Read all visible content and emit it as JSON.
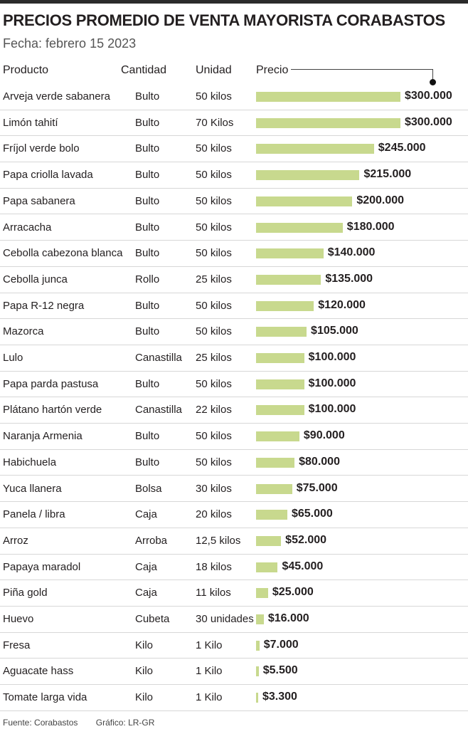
{
  "title": "PRECIOS PROMEDIO DE VENTA MAYORISTA  CORABASTOS",
  "subtitle": "Fecha: febrero 15 2023",
  "headers": {
    "producto": "Producto",
    "cantidad": "Cantidad",
    "unidad": "Unidad",
    "precio": "Precio"
  },
  "footer": {
    "source": "Fuente: Corabastos",
    "credit": "Gráfico: LR-GR"
  },
  "colors": {
    "bar": "#c8d98e",
    "text": "#231f20"
  },
  "chart_data": {
    "type": "bar",
    "orientation": "horizontal",
    "xlim": [
      0,
      300000
    ],
    "rows": [
      {
        "producto": "Arveja verde sabanera",
        "cantidad": "Bulto",
        "unidad": "50 kilos",
        "value": 300000,
        "label": "$300.000"
      },
      {
        "producto": "Limón tahití",
        "cantidad": "Bulto",
        "unidad": "70 Kilos",
        "value": 300000,
        "label": "$300.000"
      },
      {
        "producto": "Fríjol verde bolo",
        "cantidad": "Bulto",
        "unidad": "50 kilos",
        "value": 245000,
        "label": "$245.000"
      },
      {
        "producto": "Papa criolla lavada",
        "cantidad": "Bulto",
        "unidad": "50 kilos",
        "value": 215000,
        "label": "$215.000"
      },
      {
        "producto": "Papa sabanera",
        "cantidad": "Bulto",
        "unidad": "50 kilos",
        "value": 200000,
        "label": "$200.000"
      },
      {
        "producto": "Arracacha",
        "cantidad": "Bulto",
        "unidad": "50 kilos",
        "value": 180000,
        "label": "$180.000"
      },
      {
        "producto": "Cebolla cabezona blanca",
        "cantidad": "Bulto",
        "unidad": "50 kilos",
        "value": 140000,
        "label": "$140.000"
      },
      {
        "producto": "Cebolla junca",
        "cantidad": "Rollo",
        "unidad": "25 kilos",
        "value": 135000,
        "label": "$135.000"
      },
      {
        "producto": "Papa  R-12 negra",
        "cantidad": "Bulto",
        "unidad": "50 kilos",
        "value": 120000,
        "label": "$120.000"
      },
      {
        "producto": "Mazorca",
        "cantidad": "Bulto",
        "unidad": "50 kilos",
        "value": 105000,
        "label": "$105.000"
      },
      {
        "producto": "Lulo",
        "cantidad": "Canastilla",
        "unidad": "25 kilos",
        "value": 100000,
        "label": "$100.000"
      },
      {
        "producto": "Papa parda pastusa",
        "cantidad": "Bulto",
        "unidad": "50 kilos",
        "value": 100000,
        "label": "$100.000"
      },
      {
        "producto": "Plátano hartón verde",
        "cantidad": "Canastilla",
        "unidad": "22 kilos",
        "value": 100000,
        "label": "$100.000"
      },
      {
        "producto": "Naranja Armenia",
        "cantidad": "Bulto",
        "unidad": "50 kilos",
        "value": 90000,
        "label": "$90.000"
      },
      {
        "producto": "Habichuela",
        "cantidad": "Bulto",
        "unidad": "50 kilos",
        "value": 80000,
        "label": "$80.000"
      },
      {
        "producto": "Yuca llanera",
        "cantidad": "Bolsa",
        "unidad": "30 kilos",
        "value": 75000,
        "label": "$75.000"
      },
      {
        "producto": "Panela / libra",
        "cantidad": "Caja",
        "unidad": "20 kilos",
        "value": 65000,
        "label": "$65.000"
      },
      {
        "producto": "Arroz",
        "cantidad": "Arroba",
        "unidad": "12,5 kilos",
        "value": 52000,
        "label": "$52.000"
      },
      {
        "producto": "Papaya maradol",
        "cantidad": "Caja",
        "unidad": "18 kilos",
        "value": 45000,
        "label": "$45.000"
      },
      {
        "producto": "Piña gold",
        "cantidad": "Caja",
        "unidad": "11 kilos",
        "value": 25000,
        "label": "$25.000"
      },
      {
        "producto": "Huevo",
        "cantidad": "Cubeta",
        "unidad": "30 unidades",
        "value": 16000,
        "label": "$16.000"
      },
      {
        "producto": "Fresa",
        "cantidad": "Kilo",
        "unidad": "1 Kilo",
        "value": 7000,
        "label": "$7.000"
      },
      {
        "producto": "Aguacate hass",
        "cantidad": "Kilo",
        "unidad": "1 Kilo",
        "value": 5500,
        "label": "$5.500"
      },
      {
        "producto": "Tomate larga vida",
        "cantidad": "Kilo",
        "unidad": "1 Kilo",
        "value": 3300,
        "label": "$3.300"
      }
    ]
  }
}
